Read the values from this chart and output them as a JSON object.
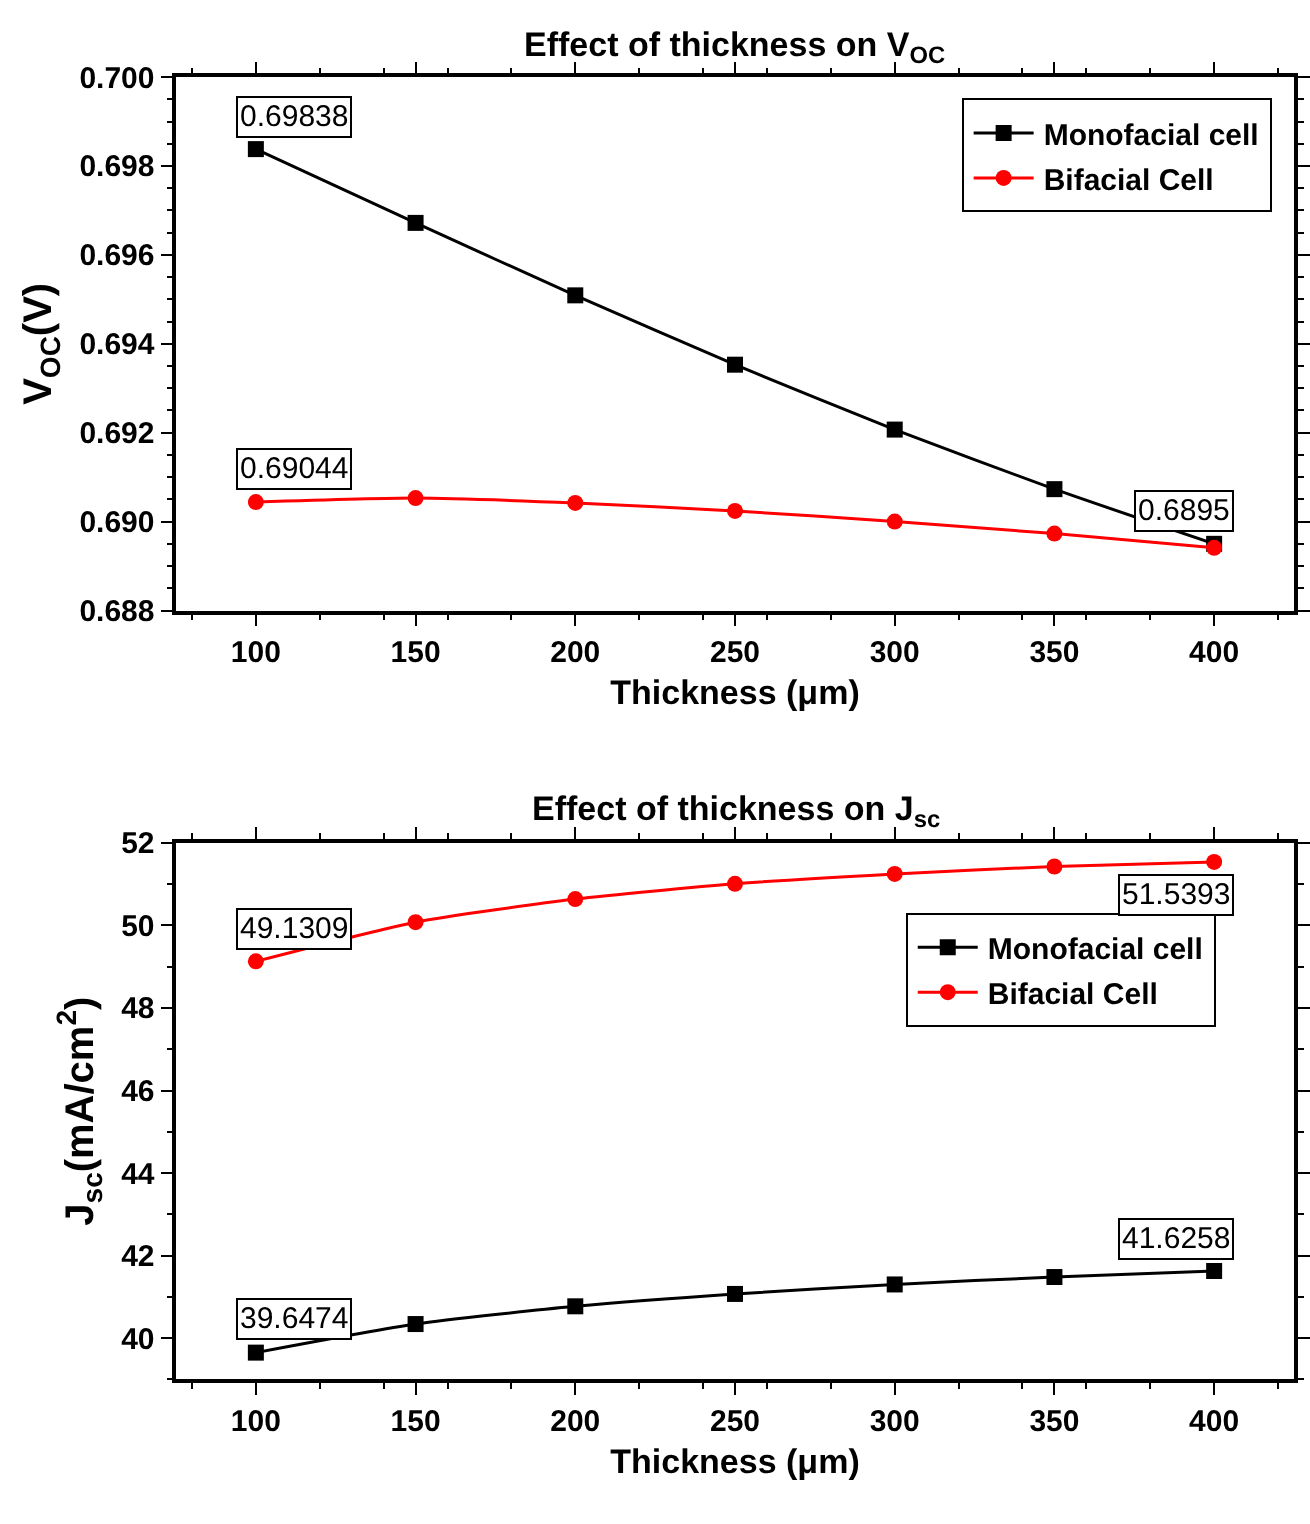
{
  "chart_data": [
    {
      "type": "line",
      "title": "Effect of thickness on V$_{OC}$",
      "xlabel": "Thickness (μm)",
      "ylabel": "V$_{OC}$(V)",
      "x": [
        100,
        150,
        200,
        250,
        300,
        350,
        400
      ],
      "xlim": [
        75,
        425
      ],
      "xticks": [
        100,
        150,
        200,
        250,
        300,
        350,
        400
      ],
      "ylim": [
        0.688,
        0.7
      ],
      "yticks": [
        0.688,
        {
          "value": 0.69,
          "label": "0.690"
        },
        0.692,
        0.694,
        0.696,
        0.698,
        {
          "value": 0.7,
          "label": "0.700"
        }
      ],
      "legend": "top right",
      "line_style": "solid",
      "series": [
        {
          "name": "Monofacial cell",
          "color": "#000000",
          "marker": "square",
          "values": [
            0.69838,
            0.69672,
            0.69509,
            0.69353,
            0.69207,
            0.69073,
            0.6895
          ],
          "value_labels": [
            "0.69838",
            null,
            null,
            null,
            null,
            null,
            "0.6895"
          ]
        },
        {
          "name": "Bifacial Cell",
          "color": "#ff0000",
          "marker": "circle",
          "values": [
            0.69044,
            0.69053,
            0.69042,
            0.69024,
            0.69,
            0.68973,
            0.68941
          ],
          "value_labels": [
            "0.69044",
            null,
            null,
            null,
            null,
            null,
            null
          ]
        }
      ]
    },
    {
      "type": "line",
      "title": "Effect of thickness on J$_{sc}$",
      "xlabel": "Thickness (μm)",
      "ylabel": "J$_{sc}$(mA/cm$^{2}$)",
      "x": [
        100,
        150,
        200,
        250,
        300,
        350,
        400
      ],
      "xlim": [
        75,
        425
      ],
      "xticks": [
        100,
        150,
        200,
        250,
        300,
        350,
        400
      ],
      "ylim": [
        39,
        52
      ],
      "yticks": [
        40,
        42,
        44,
        46,
        48,
        50,
        52
      ],
      "legend": "right",
      "line_style": "solid",
      "series": [
        {
          "name": "Monofacial cell",
          "color": "#000000",
          "marker": "square",
          "values": [
            39.6474,
            40.34,
            40.77,
            41.07,
            41.3,
            41.48,
            41.6258
          ],
          "value_labels": [
            "39.6474",
            null,
            null,
            null,
            null,
            null,
            "41.6258"
          ]
        },
        {
          "name": "Bifacial Cell",
          "color": "#ff0000",
          "marker": "circle",
          "values": [
            49.1309,
            50.08,
            50.64,
            51.01,
            51.25,
            51.43,
            51.5393
          ],
          "value_labels": [
            "49.1309",
            null,
            null,
            null,
            null,
            null,
            "51.5393"
          ]
        }
      ]
    }
  ]
}
